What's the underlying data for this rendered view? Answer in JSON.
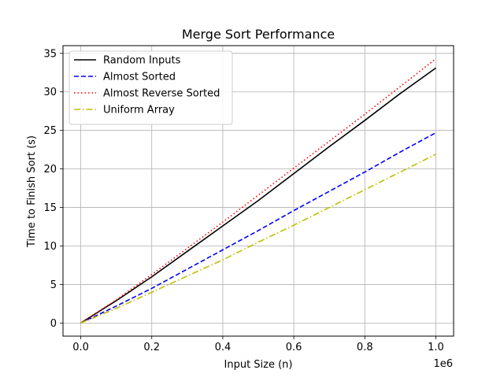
{
  "chart_data": {
    "type": "line",
    "title": "Merge Sort Performance",
    "xlabel": "Input Size (n)",
    "ylabel": "Time to Finish Sort (s)",
    "x_offset_label": "1e6",
    "xlim": [
      -0.05,
      1.05
    ],
    "ylim": [
      -1.7,
      36.0
    ],
    "grid": true,
    "legend_position": "upper left",
    "x_ticks": [
      0.0,
      0.2,
      0.4,
      0.6,
      0.8,
      1.0
    ],
    "x_tick_labels": [
      "0.0",
      "0.2",
      "0.4",
      "0.6",
      "0.8",
      "1.0"
    ],
    "y_ticks": [
      0,
      5,
      10,
      15,
      20,
      25,
      30,
      35
    ],
    "y_tick_labels": [
      "0",
      "5",
      "10",
      "15",
      "20",
      "25",
      "30",
      "35"
    ],
    "x": [
      0.0,
      0.1,
      0.2,
      0.3,
      0.4,
      0.5,
      0.6,
      0.7,
      0.8,
      0.9,
      1.0
    ],
    "series": [
      {
        "name": "Random Inputs",
        "color": "#000000",
        "style": "solid",
        "values": [
          0,
          2.9,
          6.0,
          9.3,
          12.6,
          15.9,
          19.4,
          22.9,
          26.3,
          29.8,
          33.1
        ]
      },
      {
        "name": "Almost Sorted",
        "color": "#0000ff",
        "style": "dashed",
        "values": [
          0,
          2.2,
          4.5,
          7.0,
          9.5,
          12.0,
          14.6,
          17.1,
          19.6,
          22.2,
          24.7
        ]
      },
      {
        "name": "Almost Reverse Sorted",
        "color": "#ff0000",
        "style": "dotted",
        "values": [
          0,
          3.0,
          6.3,
          9.7,
          13.1,
          16.6,
          20.1,
          23.6,
          27.1,
          30.7,
          34.3
        ]
      },
      {
        "name": "Uniform Array",
        "color": "#bfbf00",
        "style": "dashdot",
        "values": [
          0,
          1.9,
          4.0,
          6.1,
          8.2,
          10.5,
          12.7,
          15.0,
          17.3,
          19.6,
          21.9
        ]
      }
    ]
  }
}
